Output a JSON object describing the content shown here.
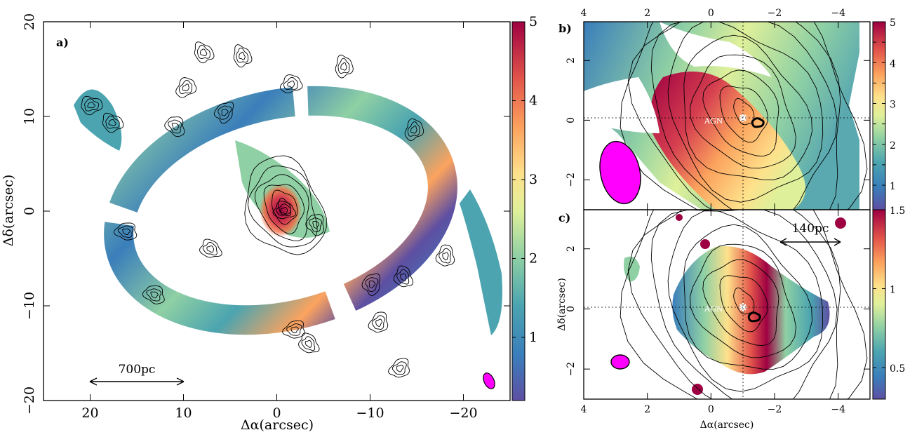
{
  "figure": {
    "panels": [
      {
        "id": "a",
        "tag": "a)"
      },
      {
        "id": "b",
        "tag": "b)"
      },
      {
        "id": "c",
        "tag": "c)"
      }
    ]
  },
  "chart_data": [
    {
      "panel": "a",
      "type": "heatmap",
      "xlabel": "Δα(arcsec)",
      "ylabel": "Δδ(arcsec)",
      "xlim": [
        25,
        -25
      ],
      "ylim": [
        -20,
        20
      ],
      "xticks": [
        20,
        10,
        0,
        -10,
        -20
      ],
      "xtick_labels": [
        "20",
        "10",
        "0",
        "−10",
        "−20"
      ],
      "yticks": [
        20,
        10,
        0,
        -10,
        -20
      ],
      "ytick_labels": [
        "20",
        "10",
        "0",
        "−10",
        "−20"
      ],
      "colorbar": {
        "range": [
          0.2,
          5
        ],
        "ticks": [
          1,
          2,
          3,
          4,
          5
        ],
        "tick_labels": [
          "1",
          "2",
          "3",
          "4",
          "5"
        ]
      },
      "scale_bar": {
        "label": "700pc",
        "from": 20,
        "to": 10,
        "at_y": -18
      },
      "beam_color": "#ff00ff",
      "grid": false,
      "rings": [
        {
          "rx": 17,
          "ry": 12.5,
          "rot": -14,
          "cx": 0,
          "cy": -1.5
        },
        {
          "rx": 6,
          "ry": 4,
          "rot": -50,
          "cx": 0,
          "cy": 0
        }
      ]
    },
    {
      "panel": "b",
      "type": "heatmap",
      "xlabel": "",
      "ylabel": "",
      "xlim": [
        4,
        -5
      ],
      "ylim": [
        -3,
        3.3
      ],
      "xticks": [
        4,
        2,
        0,
        -2,
        -4
      ],
      "xtick_labels": [
        "4",
        "2",
        "0",
        "−2",
        "−4"
      ],
      "yticks": [
        2,
        0,
        -2
      ],
      "ytick_labels": [
        "2",
        "0",
        "−2"
      ],
      "colorbar": {
        "range": [
          0.4,
          5
        ],
        "ticks": [
          1,
          1.5,
          2,
          2.5,
          3,
          3.5,
          4,
          4.5,
          5
        ],
        "tick_labels": [
          "1",
          "",
          "2",
          "",
          "3",
          "",
          "4",
          "",
          "5"
        ]
      },
      "agn_label": "AGN",
      "agn_position": [
        -0.8,
        -0.1
      ],
      "beam_color": "#ff00ff",
      "grid": false
    },
    {
      "panel": "c",
      "type": "heatmap",
      "xlabel": "Δα(arcsec)",
      "ylabel": "Δδ(arcsec)",
      "xlim": [
        4,
        -5
      ],
      "ylim": [
        -3,
        3.3
      ],
      "xticks": [
        4,
        2,
        0,
        -2,
        -4
      ],
      "xtick_labels": [
        "4",
        "2",
        "0",
        "−2",
        "−4"
      ],
      "yticks": [
        2,
        0,
        -2
      ],
      "ytick_labels": [
        "2",
        "0",
        "−2"
      ],
      "colorbar": {
        "range": [
          0.3,
          1.5
        ],
        "ticks": [
          0.5,
          1,
          1.5
        ],
        "tick_labels": [
          "0.5",
          "1",
          "1.5"
        ]
      },
      "scale_bar": {
        "label": "140pc",
        "from": -1.8,
        "to": -4.2,
        "at_y": 2.2
      },
      "agn_label": "AGN",
      "agn_position": [
        -0.8,
        -0.1
      ],
      "beam_color": "#ff00ff",
      "grid": false
    }
  ]
}
